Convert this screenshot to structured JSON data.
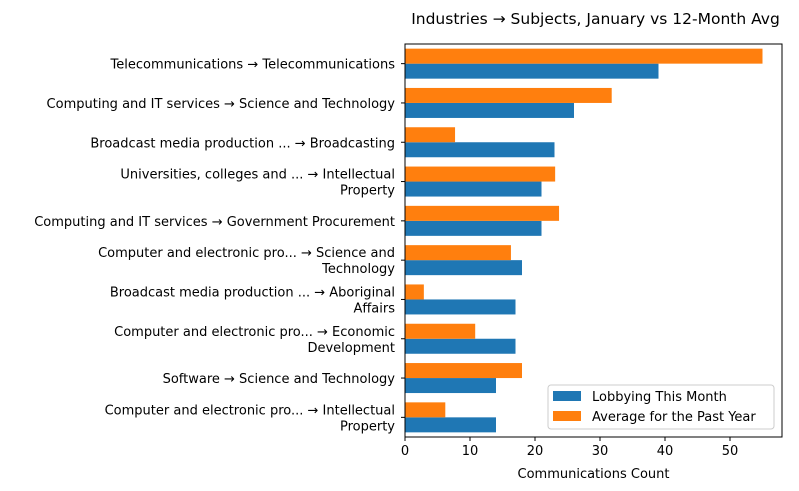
{
  "chart_data": {
    "type": "bar",
    "orientation": "horizontal",
    "title": "Industries → Subjects, January vs 12-Month Avg",
    "xlabel": "Communications Count",
    "ylabel": "",
    "xlim": [
      0,
      58
    ],
    "xticks": [
      0,
      10,
      20,
      30,
      40,
      50
    ],
    "grid": false,
    "legend_position": "lower right",
    "categories": [
      "Telecommunications → Telecommunications",
      "Computing and IT services → Science and Technology",
      "Broadcast media production ... → Broadcasting",
      "Universities, colleges and ... → Intellectual\nProperty",
      "Computing and IT services → Government Procurement",
      "Computer and electronic pro... → Science and\nTechnology",
      "Broadcast media production ... → Aboriginal\nAffairs",
      "Computer and electronic pro... → Economic\nDevelopment",
      "Software → Science and Technology",
      "Computer and electronic pro... → Intellectual\nProperty"
    ],
    "series": [
      {
        "name": "Lobbying This Month",
        "color": "#1f77b4",
        "values": [
          39,
          26,
          23,
          21,
          21,
          18,
          17,
          17,
          14,
          14
        ]
      },
      {
        "name": "Average for the Past Year",
        "color": "#ff7f0e",
        "values": [
          55,
          31.8,
          7.7,
          23.1,
          23.7,
          16.3,
          2.9,
          10.8,
          18,
          6.2
        ]
      }
    ]
  }
}
